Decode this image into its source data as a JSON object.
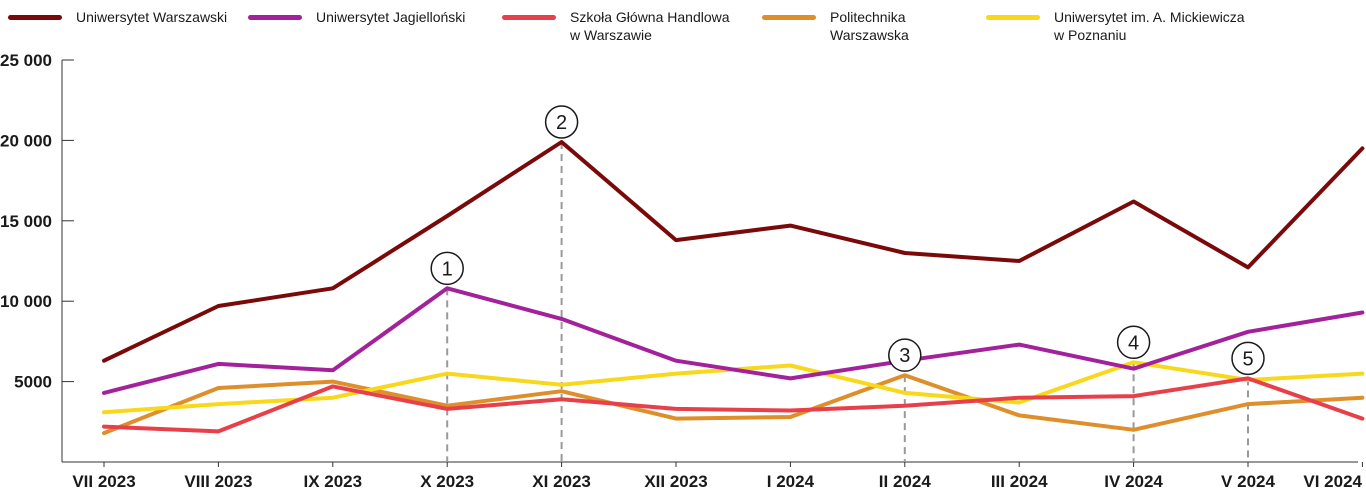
{
  "chart_data": {
    "type": "line",
    "categories": [
      "VII 2023",
      "VIII 2023",
      "IX 2023",
      "X 2023",
      "XI 2023",
      "XII 2023",
      "I 2024",
      "II 2024",
      "III 2024",
      "IV 2024",
      "V 2024",
      "VI 2024"
    ],
    "y_ticks": [
      "25 000",
      "20 000",
      "15 000",
      "10 000",
      "5000"
    ],
    "y_tick_values": [
      25000,
      20000,
      15000,
      10000,
      5000
    ],
    "ylim": [
      0,
      25000
    ],
    "grid": false,
    "legend_position": "top",
    "series": [
      {
        "name": "Uniwersytet Warszawski",
        "color": "#7a0a0a",
        "values": [
          6300,
          9700,
          10800,
          15300,
          19900,
          13800,
          14700,
          13000,
          12500,
          16200,
          12100,
          19500
        ]
      },
      {
        "name": "Uniwersytet Jagielloński",
        "color": "#a3229b",
        "values": [
          4300,
          6100,
          5700,
          10800,
          8900,
          6300,
          5200,
          6300,
          7300,
          5800,
          8100,
          9300
        ]
      },
      {
        "name": "Szkoła Główna Handlowa\nw Warszawie",
        "color": "#e8404a",
        "values": [
          2200,
          1900,
          4700,
          3300,
          3900,
          3300,
          3200,
          3500,
          4000,
          4100,
          5200,
          2700
        ]
      },
      {
        "name": "Politechnika\nWarszawska",
        "color": "#de8e2a",
        "values": [
          1800,
          4600,
          5000,
          3500,
          4400,
          2700,
          2800,
          5400,
          2900,
          2000,
          3600,
          4000
        ]
      },
      {
        "name": "Uniwersytet im. A. Mickiewicza\nw Poznaniu",
        "color": "#f7d81a",
        "values": [
          3100,
          3600,
          4000,
          5500,
          4800,
          5500,
          6000,
          4300,
          3700,
          6200,
          5100,
          5500
        ]
      }
    ],
    "annotations": [
      {
        "label": "1",
        "category_index": 3,
        "value": 10800
      },
      {
        "label": "2",
        "category_index": 4,
        "value": 19900
      },
      {
        "label": "3",
        "category_index": 7,
        "value": 5400
      },
      {
        "label": "4",
        "category_index": 9,
        "value": 6200
      },
      {
        "label": "5",
        "category_index": 10,
        "value": 5200
      }
    ]
  }
}
